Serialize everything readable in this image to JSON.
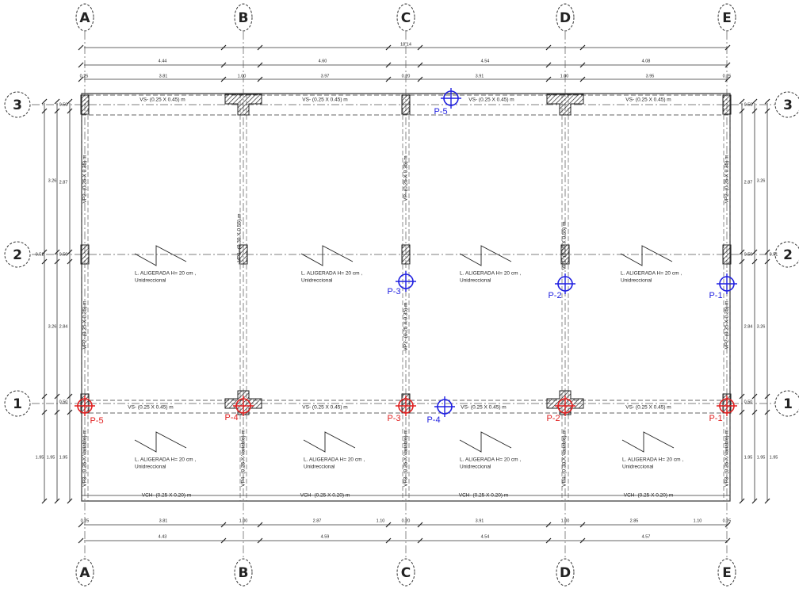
{
  "axes": {
    "columns": [
      "A",
      "B",
      "C",
      "D",
      "E"
    ],
    "rows": [
      "3",
      "2",
      "1"
    ]
  },
  "dimensions": {
    "top_total": "18.14",
    "top_spans": [
      "4.44",
      "4.60",
      "4.54",
      "4.08"
    ],
    "top_details": [
      "0.25",
      "3.81",
      "1.00",
      "3.97",
      "0.20",
      "3.91",
      "1.00",
      "3.95",
      "0.25"
    ],
    "bottom_details": [
      "0.25",
      "3.81",
      "1.00",
      "2.87",
      "1.10",
      "0.20",
      "3.91",
      "1.00",
      "2.85",
      "1.10",
      "0.25"
    ],
    "bottom_spans": [
      "4.43",
      "4.59",
      "4.54",
      "4.57"
    ],
    "left": [
      "3.26",
      "2.87",
      "0.50",
      "0.51",
      "0.50",
      "3.26",
      "2.84",
      "0.50",
      "1.95",
      "1.95",
      "1.95"
    ],
    "right": [
      "2.87",
      "3.26",
      "0.50",
      "0.50",
      "0.51",
      "2.84",
      "3.26",
      "0.50",
      "1.95",
      "1.95",
      "1.95"
    ]
  },
  "beams": {
    "horizontal": [
      "VS- (0.25 X 0.45) m",
      "VS- (0.25 X 0.45) m",
      "VS- (0.25 X 0.45) m",
      "VS- (0.25 X 0.45) m",
      "VS- (0.25 X 0.45) m",
      "VS- (0.25 X 0.45) m",
      "VS- (0.25 X 0.45) m",
      "VS- (0.25 X 0.45) m",
      "VCH- (0.25 X 0.20) m",
      "VCH- (0.25 X 0.20) m",
      "VCH- (0.25 X 0.20) m",
      "VCH- (0.25 X 0.20) m"
    ],
    "vertical": [
      "VP2- (0.25 X 0.35) m",
      "VP2- (0.25 X 0.35) m",
      "VP3- (0.25 X Variable) m",
      "VP1- (0.30 X 0.55) m",
      "VP4- (0.25 X Variable) m",
      "VP- (0.25 X 0.35) m",
      "VP2- (0.25 X 0.35) m",
      "VP3- (0.25 X Variable) m",
      "VP1- (0.30 X 0.55) m",
      "VP4- (0.30 X Variable) m",
      "VP2- (0.25 X 0.35) m",
      "VP2- (0.25 X 0.35) m",
      "VP3- (0.25 X Variable) m"
    ]
  },
  "slabs": [
    {
      "label": "L. ALIGERADA H= 20 cm ,",
      "note": "Unidreccional"
    },
    {
      "label": "L. ALIGERADA H= 20 cm ,",
      "note": "Unidreccional"
    },
    {
      "label": "L. ALIGERADA H= 20 cm ,",
      "note": "Unidreccional"
    },
    {
      "label": "L. ALIGERADA H= 20 cm ,",
      "note": "Unidreccional"
    },
    {
      "label": "L. ALIGERADA H= 20 cm ,",
      "note": "Unidreccional"
    },
    {
      "label": "L. ALIGERADA H= 20 cm ,",
      "note": "Unidreccional"
    },
    {
      "label": "L. ALIGERADA H= 20 cm ,",
      "note": "Unidreccional"
    },
    {
      "label": "L. ALIGERADA H= 20 cm ,",
      "note": "Unidreccional"
    }
  ],
  "points": {
    "blue": {
      "color": "#1f1fe0",
      "labels": [
        "P-5",
        "P-3",
        "P-2",
        "P-1",
        "P-4"
      ]
    },
    "red": {
      "color": "#e01f1f",
      "labels": [
        "P-5",
        "P-4",
        "P-3",
        "P-2",
        "P-1"
      ]
    }
  }
}
